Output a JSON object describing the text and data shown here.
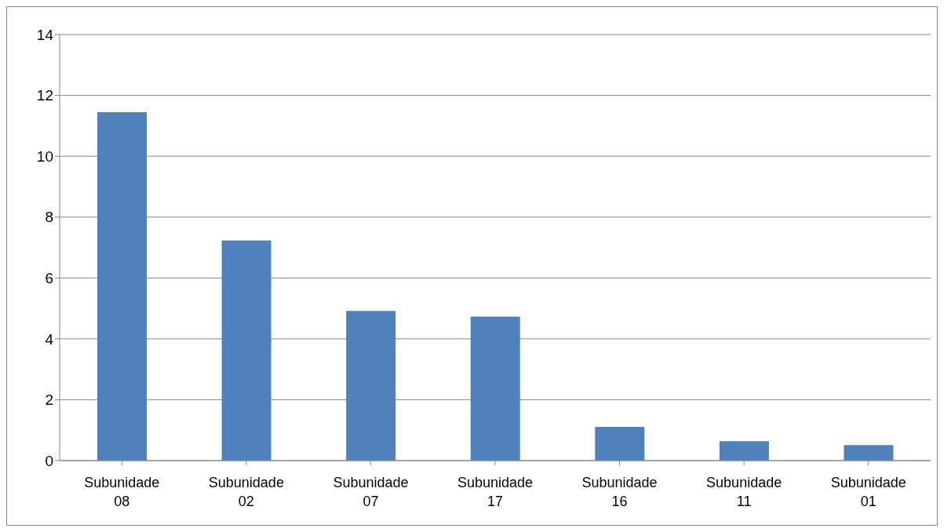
{
  "chart_data": {
    "type": "bar",
    "categories": [
      "Subunidade 08",
      "Subunidade 02",
      "Subunidade 07",
      "Subunidade 17",
      "Subunidade 16",
      "Subunidade 11",
      "Subunidade 01"
    ],
    "values": [
      11.45,
      7.23,
      4.92,
      4.73,
      1.11,
      0.64,
      0.51
    ],
    "color": "#4f81bd",
    "ylim": [
      0,
      14
    ],
    "yticks": [
      0,
      2,
      4,
      6,
      8,
      10,
      12,
      14
    ],
    "grid": "y"
  }
}
